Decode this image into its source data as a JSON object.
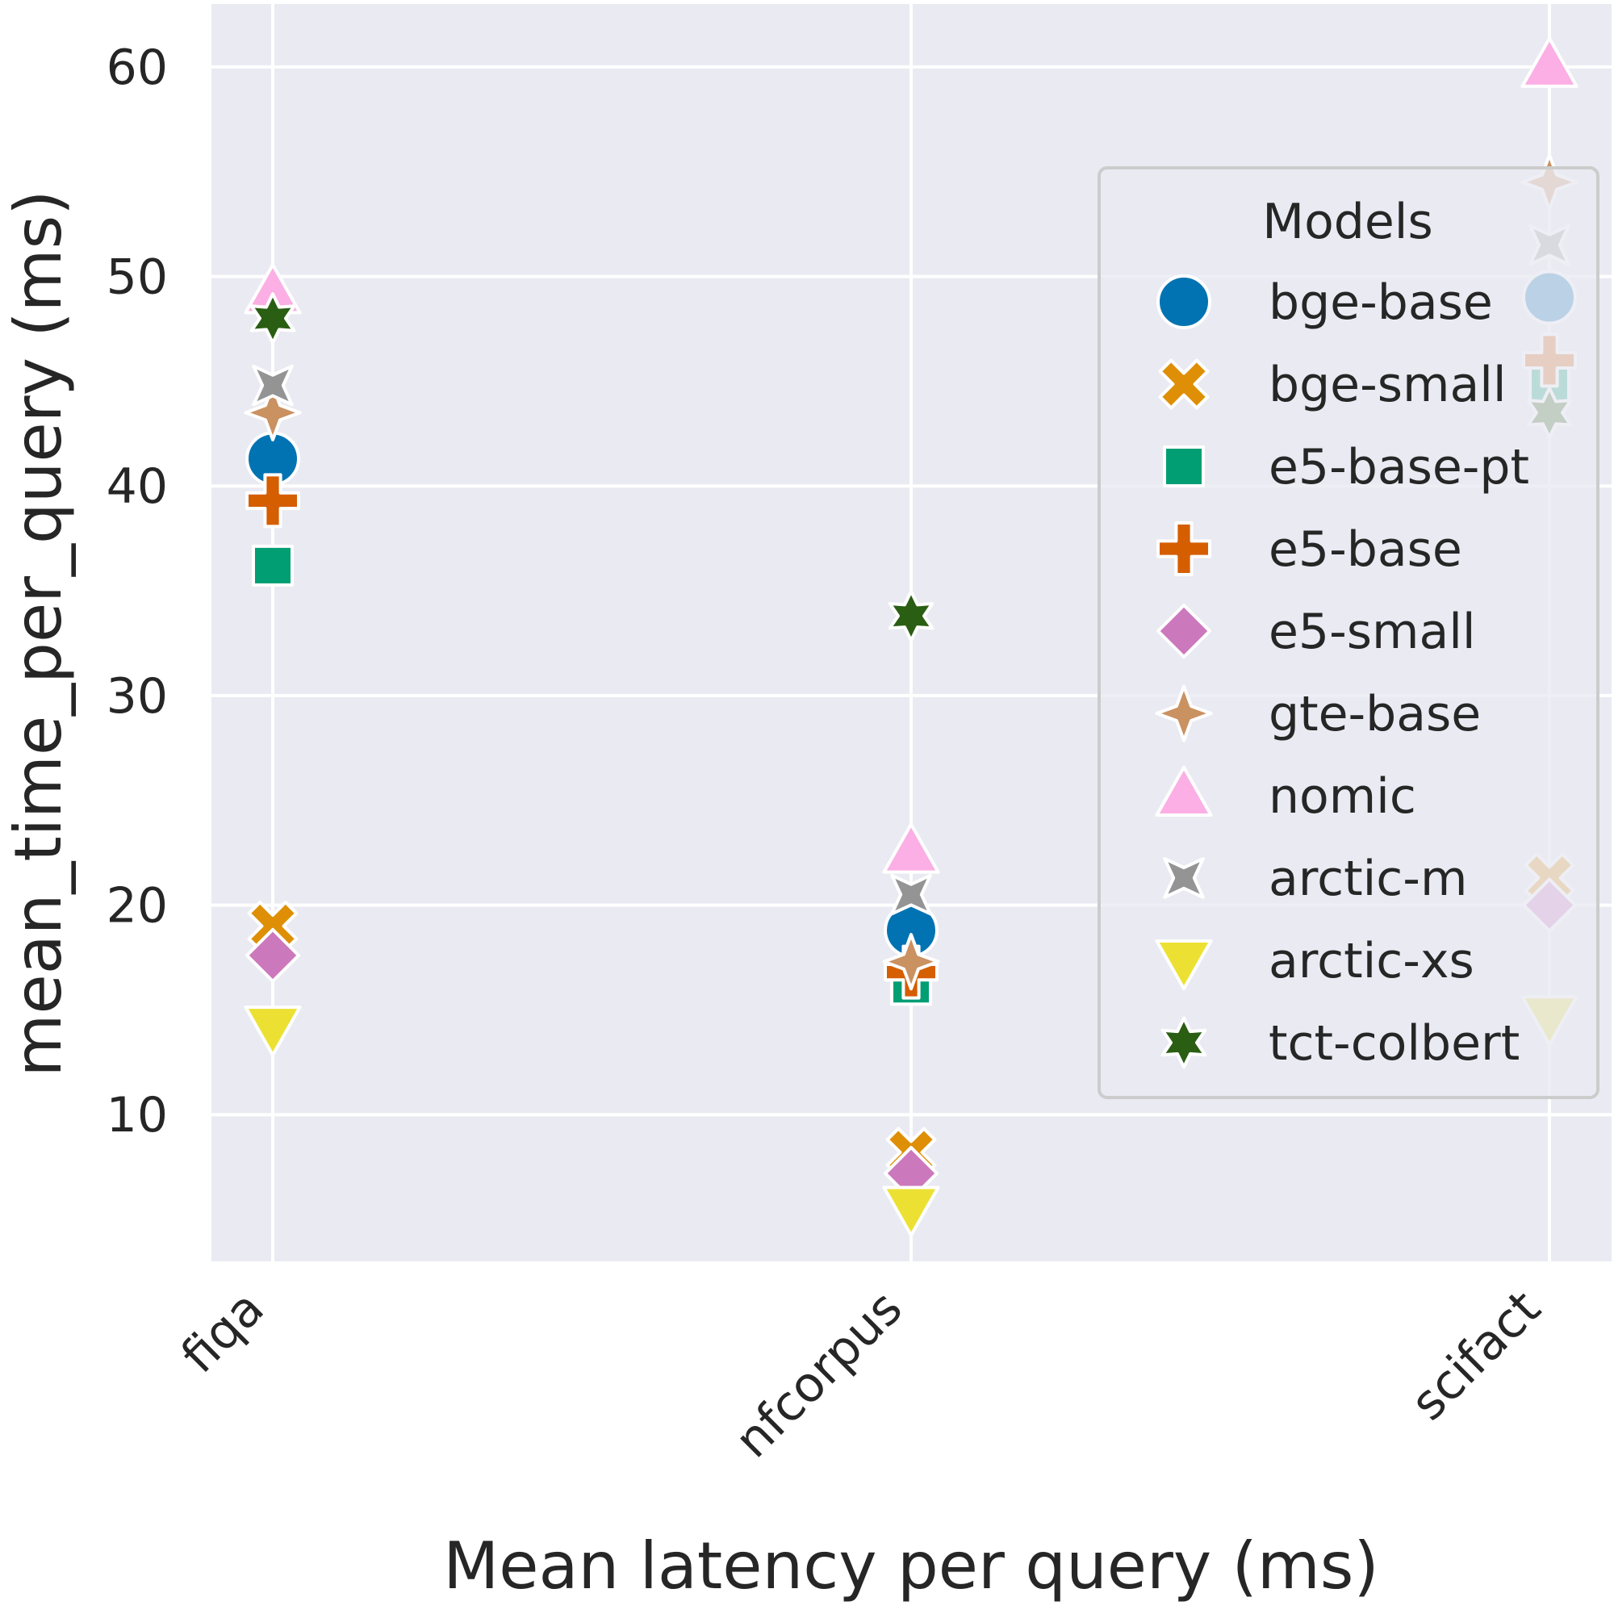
{
  "chart_data": {
    "type": "scatter",
    "title": "",
    "xlabel": "Mean latency per query (ms)",
    "ylabel": "mean_time_per_query (ms)",
    "categories": [
      "fiqa",
      "nfcorpus",
      "scifact"
    ],
    "ylim": [
      3,
      63
    ],
    "yticks": [
      10,
      20,
      30,
      40,
      50,
      60
    ],
    "grid": true,
    "legend": {
      "title": "Models",
      "placement": "right"
    },
    "series": [
      {
        "name": "bge-base",
        "marker": "circle",
        "color": "#0173b2",
        "values": [
          41.3,
          18.8,
          49.0
        ]
      },
      {
        "name": "bge-small",
        "marker": "x",
        "color": "#de8f05",
        "values": [
          19.0,
          8.2,
          21.3
        ]
      },
      {
        "name": "e5-base-pt",
        "marker": "square",
        "color": "#029e73",
        "values": [
          36.2,
          16.2,
          44.8
        ]
      },
      {
        "name": "e5-base",
        "marker": "plus",
        "color": "#d55e00",
        "values": [
          39.3,
          16.8,
          46.0
        ]
      },
      {
        "name": "e5-small",
        "marker": "diamond",
        "color": "#cc78bc",
        "values": [
          17.6,
          7.2,
          20.0
        ]
      },
      {
        "name": "gte-base",
        "marker": "star4",
        "color": "#ca9161",
        "values": [
          43.5,
          17.3,
          54.5
        ]
      },
      {
        "name": "nomic",
        "marker": "triangle-up",
        "color": "#fbafe4",
        "values": [
          49.2,
          22.5,
          60.0
        ]
      },
      {
        "name": "arctic-m",
        "marker": "star4-rotated",
        "color": "#949494",
        "values": [
          44.8,
          20.5,
          51.5
        ]
      },
      {
        "name": "arctic-xs",
        "marker": "triangle-down",
        "color": "#ece133",
        "values": [
          14.2,
          5.6,
          14.7
        ]
      },
      {
        "name": "tct-colbert",
        "marker": "star6",
        "color": "#2a5e13",
        "values": [
          48.0,
          33.8,
          43.5
        ]
      }
    ]
  }
}
